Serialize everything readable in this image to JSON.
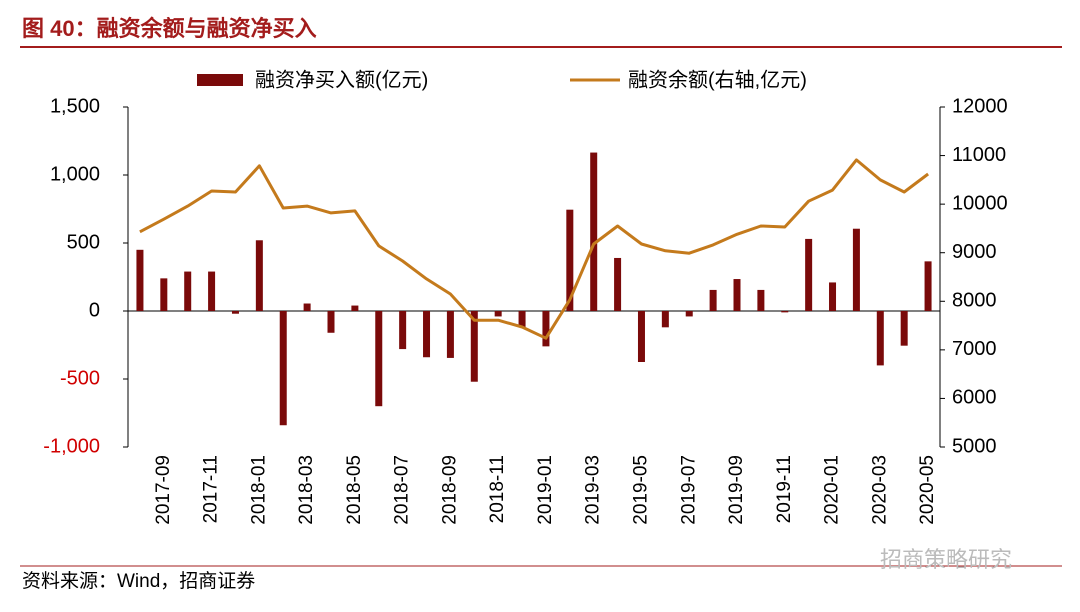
{
  "chart_data": {
    "type": "combo",
    "title": "图 40：融资余额与融资净买入",
    "source": "资料来源：Wind，招商证券",
    "watermark": "招商策略研究",
    "categories": [
      null,
      "2017-09",
      null,
      "2017-11",
      null,
      "2018-01",
      null,
      "2018-03",
      null,
      "2018-05",
      null,
      "2018-07",
      null,
      "2018-09",
      null,
      "2018-11",
      null,
      "2019-01",
      null,
      "2019-03",
      null,
      "2019-05",
      null,
      "2019-07",
      null,
      "2019-09",
      null,
      "2019-11",
      null,
      "2020-01",
      null,
      "2020-03",
      null,
      "2020-05"
    ],
    "series": [
      {
        "name": "融资净买入额(亿元)",
        "type": "bar",
        "color": "#7a0a0a",
        "values": [
          450,
          240,
          290,
          290,
          -20,
          520,
          -840,
          55,
          -160,
          40,
          -700,
          -280,
          -340,
          -345,
          -520,
          -40,
          -120,
          -260,
          745,
          1165,
          390,
          -375,
          -120,
          -40,
          155,
          235,
          155,
          -10,
          530,
          210,
          605,
          -400,
          -255,
          365
        ]
      },
      {
        "name": "融资余额(右轴,亿元)",
        "type": "line",
        "axis": "y2",
        "color": "#c47a1c",
        "values": [
          9430,
          9690,
          9960,
          10270,
          10250,
          10790,
          9920,
          9960,
          9820,
          9860,
          9140,
          8830,
          8460,
          8150,
          7610,
          7610,
          7470,
          7240,
          8030,
          9180,
          9550,
          9180,
          9040,
          8990,
          9160,
          9380,
          9550,
          9530,
          10060,
          10290,
          10910,
          10500,
          10250,
          10620
        ]
      }
    ],
    "ylim": [
      -1000,
      1500
    ],
    "yticks": [
      {
        "value": -1000,
        "label": "-1,000"
      },
      -500,
      0,
      500,
      {
        "value": 1000,
        "label": "1,000"
      },
      {
        "value": 1500,
        "label": "1,500"
      }
    ],
    "y2lim": [
      5000,
      12000
    ],
    "y2ticks": [
      5000,
      6000,
      7000,
      8000,
      9000,
      10000,
      11000,
      12000
    ],
    "negative_tick_color": "#d00000",
    "grid": false
  }
}
